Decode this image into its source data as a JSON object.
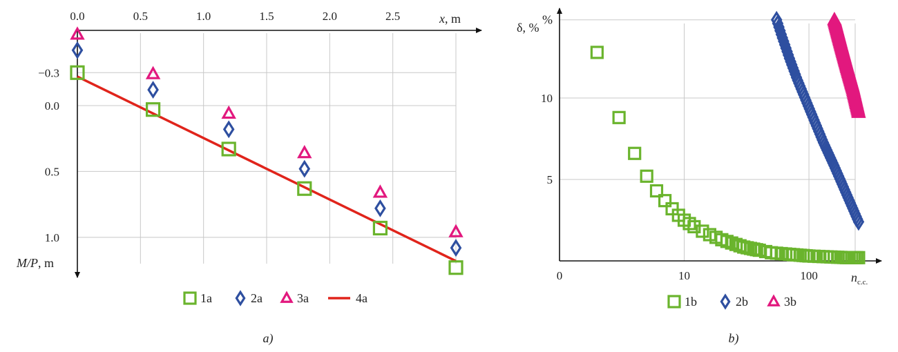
{
  "colors": {
    "green": "#6ab42d",
    "blue": "#2e4fa0",
    "magenta": "#e2187e",
    "red": "#e0241b"
  },
  "chart_data": [
    {
      "type": "scatter",
      "panel_label": "a)",
      "x_axis_label": {
        "italic": "x",
        "rest": ", m"
      },
      "y_axis_label": {
        "italic": "M/P",
        "rest": ", m"
      },
      "x_ticks": [
        "0.0",
        "0.5",
        "1.0",
        "1.5",
        "2.0",
        "2.5"
      ],
      "x_tick_values": [
        0,
        0.5,
        1.0,
        1.5,
        2.0,
        2.5
      ],
      "y_ticks": [
        "−0.3",
        "0.0",
        "0.5",
        "1.0"
      ],
      "y_tick_values": [
        -0.25,
        0.0,
        0.5,
        1.0
      ],
      "xlim": [
        0,
        3.0
      ],
      "ylim": [
        -0.55,
        1.2
      ],
      "y_inverted": true,
      "x_axis_position": "top",
      "grid": true,
      "legend_position": "bottom",
      "x": [
        0.0,
        0.6,
        1.2,
        1.8,
        2.4,
        3.0
      ],
      "series": [
        {
          "name": "1a",
          "marker": "square",
          "color": "#6ab42d",
          "values": [
            -0.25,
            0.03,
            0.33,
            0.63,
            0.93,
            1.23
          ]
        },
        {
          "name": "2a",
          "marker": "diamond",
          "color": "#2e4fa0",
          "values": [
            -0.42,
            -0.12,
            0.18,
            0.48,
            0.78,
            1.08
          ]
        },
        {
          "name": "3a",
          "marker": "triangle",
          "color": "#e2187e",
          "values": [
            -0.54,
            -0.24,
            0.06,
            0.36,
            0.66,
            0.96
          ]
        },
        {
          "name": "4a",
          "marker": "line",
          "color": "#e0241b",
          "x": [
            0.0,
            3.0
          ],
          "values": [
            -0.22,
            1.18
          ]
        }
      ]
    },
    {
      "type": "scatter",
      "panel_label": "b)",
      "x_axis_label": {
        "italic": "n",
        "sub": "c.c."
      },
      "y_axis_label": {
        "text": "δ, %"
      },
      "x_scale": "log",
      "x_ticks": [
        "0",
        "10",
        "100"
      ],
      "y_ticks": [
        "5",
        "10",
        "%"
      ],
      "y_tick_values": [
        5,
        10,
        14.8
      ],
      "xlim": [
        1,
        260
      ],
      "ylim": [
        0,
        15
      ],
      "grid": true,
      "legend_position": "bottom",
      "series": [
        {
          "name": "1b",
          "marker": "square",
          "color": "#6ab42d",
          "x": [
            2,
            3,
            4,
            5,
            6,
            7,
            8,
            9,
            10,
            12,
            15,
            20,
            30,
            50,
            100,
            200,
            250
          ],
          "values": [
            12.8,
            8.8,
            6.6,
            5.2,
            4.3,
            3.7,
            3.2,
            2.8,
            2.5,
            2.1,
            1.7,
            1.3,
            0.85,
            0.5,
            0.3,
            0.2,
            0.2
          ]
        },
        {
          "name": "2b",
          "marker": "diamond",
          "color": "#2e4fa0",
          "x": [
            55,
            60,
            70,
            80,
            100,
            130,
            160,
            200,
            250
          ],
          "values": [
            14.8,
            13.9,
            12.4,
            11.2,
            9.4,
            7.3,
            5.8,
            4.1,
            2.4
          ]
        },
        {
          "name": "3b",
          "marker": "triangle",
          "color": "#e2187e",
          "x": [
            160,
            180,
            200,
            225,
            250
          ],
          "values": [
            14.8,
            13.3,
            12.0,
            10.6,
            9.1
          ]
        }
      ]
    }
  ]
}
